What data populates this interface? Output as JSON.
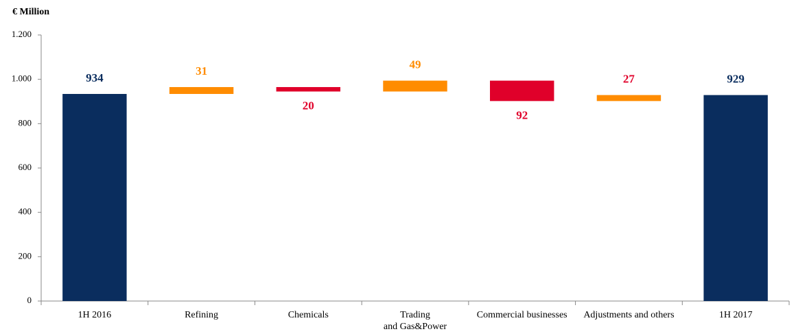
{
  "chart_data": {
    "type": "waterfall",
    "y_label": "€ Million",
    "categories": [
      "1H 2016",
      "Refining",
      "Chemicals",
      "Trading\nand Gas&Power",
      "Commercial businesses",
      "Adjustments and others",
      "1H 2017"
    ],
    "values": [
      934,
      31,
      -20,
      49,
      -92,
      27,
      929
    ],
    "value_labels": [
      "934",
      "31",
      "20",
      "49",
      "92",
      "27",
      "929"
    ],
    "colors": [
      "#0a2d5e",
      "#ff8c00",
      "#e0002a",
      "#ff8c00",
      "#e0002a",
      "#ff8c00",
      "#0a2d5e"
    ],
    "label_colors": [
      "#0a2d5e",
      "#ff8c00",
      "#e0002a",
      "#ff8c00",
      "#e0002a",
      "#e0002a",
      "#0a2d5e"
    ],
    "ylim": [
      0,
      1200
    ],
    "yticks": [
      0,
      200,
      400,
      600,
      800,
      {
        "value": 1000,
        "label": "1.000"
      },
      {
        "value": 1200,
        "label": "1.200"
      }
    ]
  }
}
